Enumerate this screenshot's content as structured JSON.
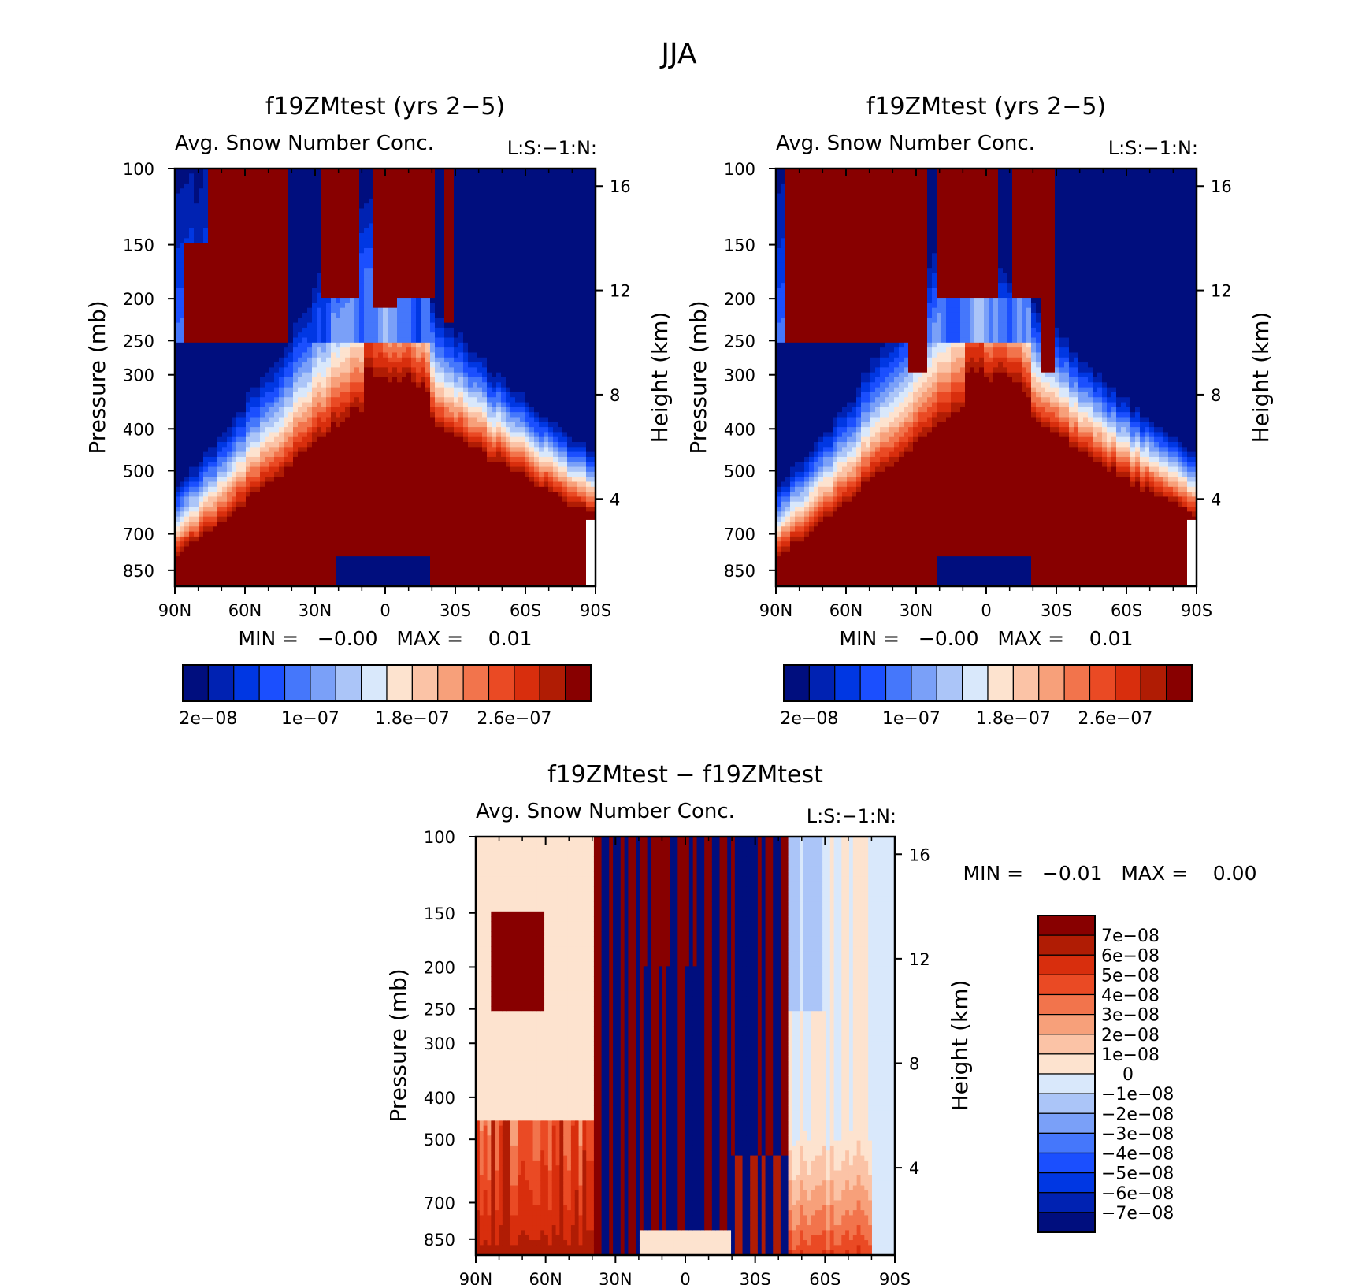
{
  "figure": {
    "title": "JJA"
  },
  "panels": [
    {
      "id": "top-left",
      "title": "f19ZMtest (yrs 2−5)",
      "subtitle_left": "Avg. Snow Number Conc.",
      "subtitle_right": "L:S:−1:N:",
      "y_label": "Pressure (mb)",
      "y2_label": "Height (km)",
      "stats_text": "MIN =   −0.00   MAX =    0.01",
      "colorbar_labels": [
        "2e−08",
        "1e−07",
        "1.8e−07",
        "2.6e−07"
      ]
    },
    {
      "id": "top-right",
      "title": "f19ZMtest (yrs 2−5)",
      "subtitle_left": "Avg. Snow Number Conc.",
      "subtitle_right": "L:S:−1:N:",
      "y_label": "Pressure (mb)",
      "y2_label": "Height (km)",
      "stats_text": "MIN =   −0.00   MAX =    0.01",
      "colorbar_labels": [
        "2e−08",
        "1e−07",
        "1.8e−07",
        "2.6e−07"
      ]
    },
    {
      "id": "bottom",
      "title": "f19ZMtest − f19ZMtest",
      "subtitle_left": "Avg. Snow Number Conc.",
      "subtitle_right": "L:S:−1:N:",
      "y_label": "Pressure (mb)",
      "y2_label": "Height (km)",
      "stats_text": "MIN =   −0.01   MAX =    0.00",
      "colorbar_labels": [
        "7e−08",
        "6e−08",
        "5e−08",
        "4e−08",
        "3e−08",
        "2e−08",
        "1e−08",
        "0",
        "−1e−08",
        "−2e−08",
        "−3e−08",
        "−4e−08",
        "−5e−08",
        "−6e−08",
        "−7e−08"
      ]
    }
  ],
  "colors": {
    "abs_scale": [
      "#000e7e",
      "#0022b2",
      "#0037e3",
      "#1b4ffe",
      "#4577fb",
      "#7aa0f8",
      "#abc5f8",
      "#d9e8fb",
      "#fde3cf",
      "#fbc3a6",
      "#f7a07a",
      "#f2744c",
      "#ea4a24",
      "#d82e0d",
      "#b01c04",
      "#880000"
    ],
    "diff_scale": [
      "#880000",
      "#b01c04",
      "#d82e0d",
      "#ea4a24",
      "#f2744c",
      "#f7a07a",
      "#fbc3a6",
      "#fde3cf",
      "#d9e8fb",
      "#abc5f8",
      "#7aa0f8",
      "#4577fb",
      "#1b4ffe",
      "#0037e3",
      "#0022b2",
      "#000e7e"
    ]
  },
  "chart_data": [
    {
      "type": "heatmap",
      "panel": "top-left",
      "title": "f19ZMtest (yrs 2−5)",
      "variable": "Avg. Snow Number Conc.",
      "x_ticks": [
        "90N",
        "60N",
        "30N",
        "0",
        "30S",
        "60S",
        "90S"
      ],
      "x_range_deg_lat": [
        90,
        -90
      ],
      "y_ticks": [
        100,
        150,
        200,
        250,
        300,
        400,
        500,
        700,
        850
      ],
      "y_range_mb": [
        100,
        925
      ],
      "y_scale": "log",
      "y2_ticks": [
        16,
        12,
        8,
        4
      ],
      "color_levels": [
        2e-08,
        4e-08,
        6e-08,
        8e-08,
        1e-07,
        1.2e-07,
        1.4e-07,
        1.6e-07,
        1.8e-07,
        2e-07,
        2.2e-07,
        2.4e-07,
        2.6e-07,
        2.8e-07,
        3e-07
      ],
      "min": -0.0,
      "max": 0.01
    },
    {
      "type": "heatmap",
      "panel": "top-right",
      "title": "f19ZMtest (yrs 2−5)",
      "variable": "Avg. Snow Number Conc.",
      "x_ticks": [
        "90N",
        "60N",
        "30N",
        "0",
        "30S",
        "60S",
        "90S"
      ],
      "x_range_deg_lat": [
        90,
        -90
      ],
      "y_ticks": [
        100,
        150,
        200,
        250,
        300,
        400,
        500,
        700,
        850
      ],
      "y_range_mb": [
        100,
        925
      ],
      "y_scale": "log",
      "y2_ticks": [
        16,
        12,
        8,
        4
      ],
      "color_levels": [
        2e-08,
        4e-08,
        6e-08,
        8e-08,
        1e-07,
        1.2e-07,
        1.4e-07,
        1.6e-07,
        1.8e-07,
        2e-07,
        2.2e-07,
        2.4e-07,
        2.6e-07,
        2.8e-07,
        3e-07
      ],
      "min": -0.0,
      "max": 0.01
    },
    {
      "type": "heatmap",
      "panel": "bottom",
      "title": "f19ZMtest − f19ZMtest",
      "variable": "Avg. Snow Number Conc.",
      "x_ticks": [
        "90N",
        "60N",
        "30N",
        "0",
        "30S",
        "60S",
        "90S"
      ],
      "x_range_deg_lat": [
        90,
        -90
      ],
      "y_ticks": [
        100,
        150,
        200,
        250,
        300,
        400,
        500,
        700,
        850
      ],
      "y_range_mb": [
        100,
        925
      ],
      "y_scale": "log",
      "y2_ticks": [
        16,
        12,
        8,
        4
      ],
      "color_levels": [
        7e-08,
        6e-08,
        5e-08,
        4e-08,
        3e-08,
        2e-08,
        1e-08,
        0,
        -1e-08,
        -2e-08,
        -3e-08,
        -4e-08,
        -5e-08,
        -6e-08,
        -7e-08
      ],
      "min": -0.01,
      "max": 0.0
    }
  ]
}
